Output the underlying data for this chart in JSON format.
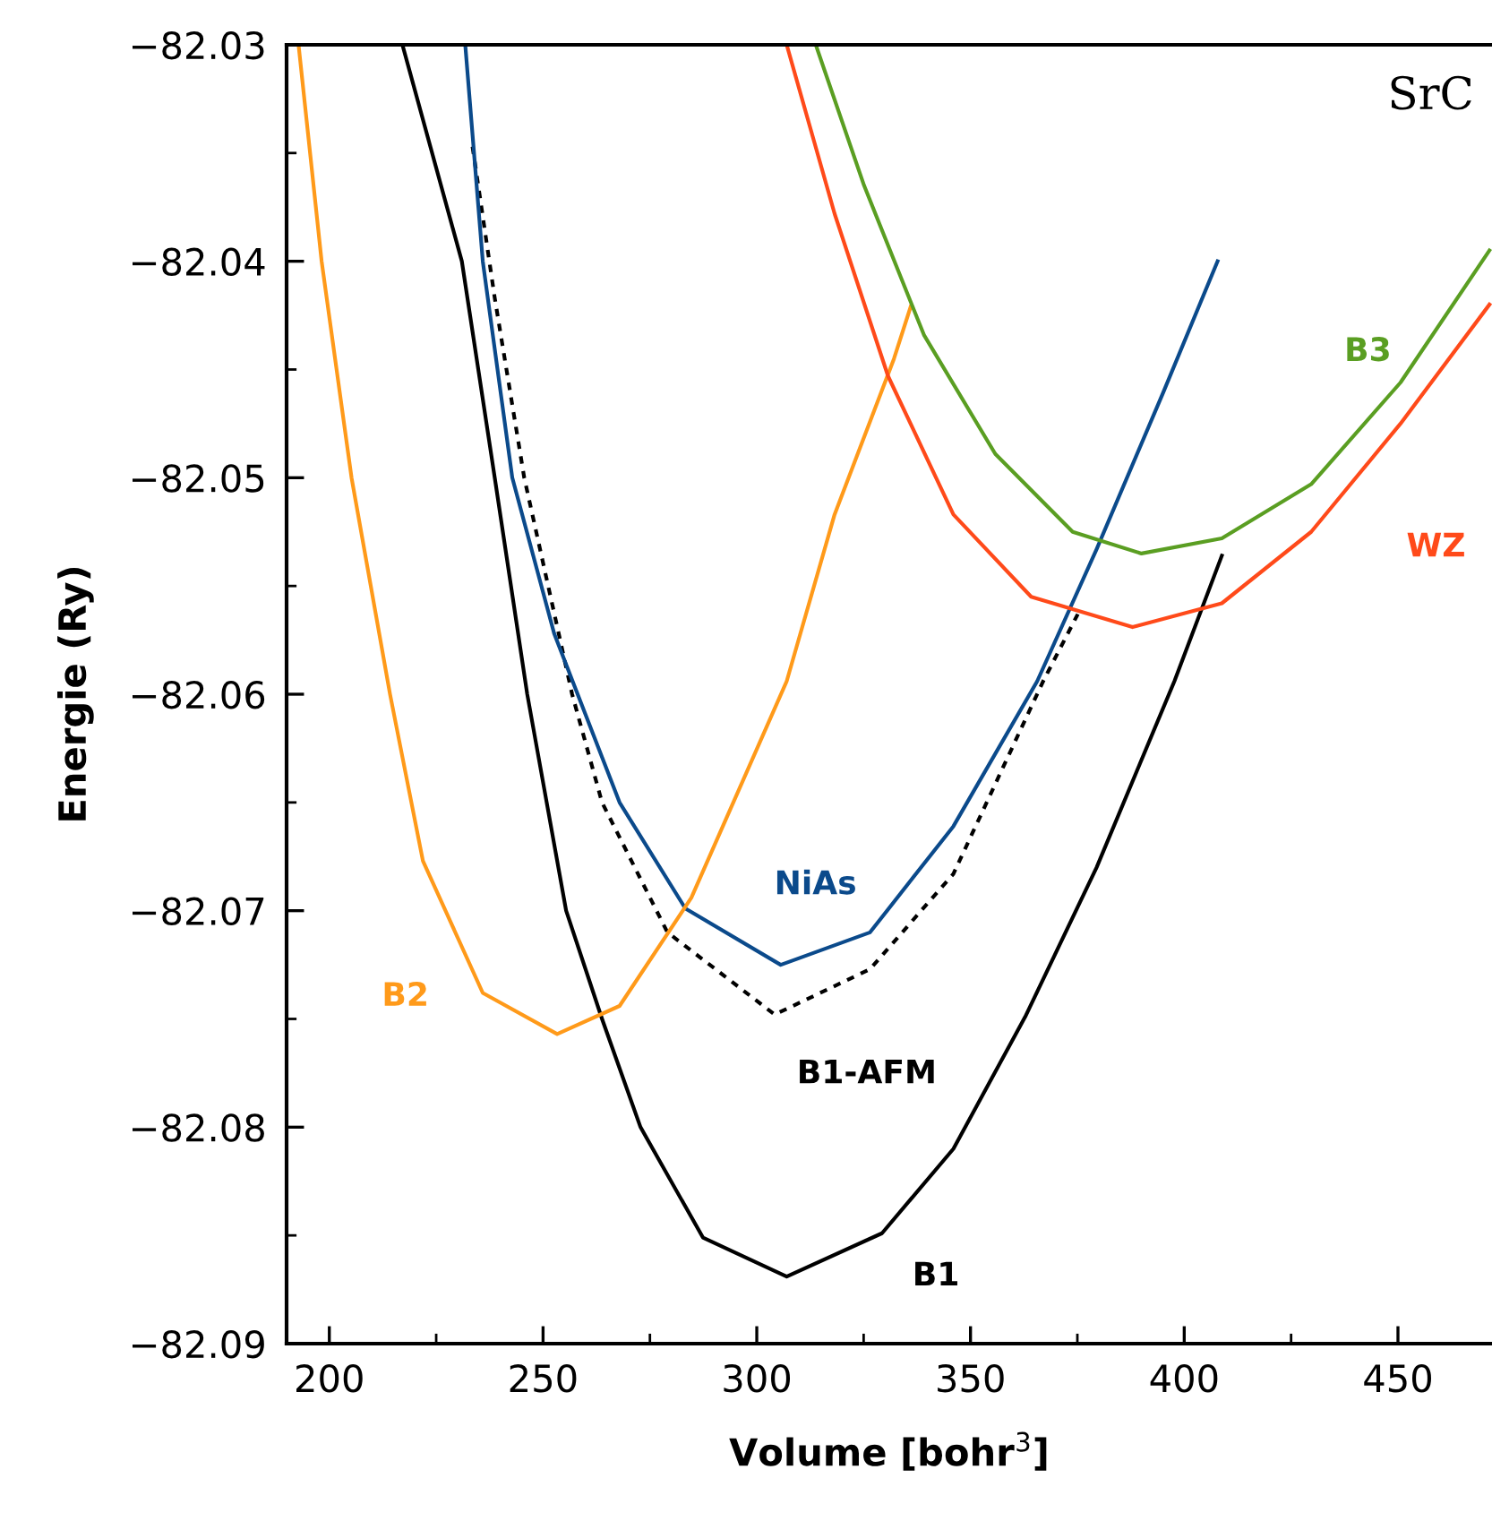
{
  "chart_data": {
    "type": "line",
    "xlabel": "Volume [bohr$^{3}$]",
    "ylabel": "Energie (Ry)",
    "annotations": [
      "SrC"
    ],
    "xlim": [
      190,
      472
    ],
    "ylim": [
      -82.09,
      -82.03
    ],
    "xticks": [
      200,
      250,
      300,
      350,
      400,
      450
    ],
    "yticks": [
      {
        "value": -82.09,
        "label": "−82.09"
      },
      {
        "value": -82.08,
        "label": "−82.08"
      },
      {
        "value": -82.07,
        "label": "−82.07"
      },
      {
        "value": -82.06,
        "label": "−82.06"
      },
      {
        "value": -82.05,
        "label": "−82.05"
      },
      {
        "value": -82.04,
        "label": "−82.04"
      },
      {
        "value": -82.03,
        "label": "−82.03"
      }
    ],
    "grid": false,
    "legend": false,
    "marker": "none",
    "series": [
      {
        "name": "B1",
        "color": "#000000",
        "line_style": "solid",
        "x": [
          217.1,
          231.0,
          238.7,
          246.3,
          255.4,
          263.8,
          272.8,
          287.4,
          307.0,
          329.3,
          346.0,
          362.8,
          379.5,
          397.7,
          408.8
        ],
        "values": [
          -82.03,
          -82.04,
          -82.05,
          -82.06,
          -82.07,
          -82.075,
          -82.08,
          -82.0851,
          -82.0869,
          -82.0849,
          -82.081,
          -82.0749,
          -82.068,
          -82.0594,
          -82.0536
        ]
      },
      {
        "name": "B1-AFM",
        "color": "#000000",
        "line_style": "dotted",
        "x": [
          233.5,
          238.7,
          245.6,
          256.8,
          263.8,
          279.1,
          304.2,
          326.5,
          346.0,
          367.0,
          375.1
        ],
        "values": [
          -82.0347,
          -82.0417,
          -82.05,
          -82.06,
          -82.065,
          -82.071,
          -82.0748,
          -82.0727,
          -82.0683,
          -82.0594,
          -82.0563
        ]
      },
      {
        "name": "NiAs",
        "color": "#0b4a8b",
        "line_style": "solid",
        "x": [
          231.8,
          235.9,
          242.8,
          252.6,
          267.9,
          283.3,
          305.6,
          326.5,
          346.0,
          365.6,
          379.5,
          395.0,
          407.8
        ],
        "values": [
          -82.03,
          -82.04,
          -82.05,
          -82.0572,
          -82.065,
          -82.0699,
          -82.0725,
          -82.071,
          -82.0661,
          -82.0594,
          -82.0533,
          -82.0461,
          -82.04
        ]
      },
      {
        "name": "B2",
        "color": "#ff9a1a",
        "line_style": "solid",
        "x": [
          192.8,
          198.2,
          205.2,
          214.2,
          221.9,
          235.9,
          253.3,
          267.9,
          284.7,
          307.0,
          318.2,
          332.1,
          336.0
        ],
        "values": [
          -82.03,
          -82.04,
          -82.05,
          -82.06,
          -82.0677,
          -82.0738,
          -82.0757,
          -82.0744,
          -82.0694,
          -82.0594,
          -82.0517,
          -82.0445,
          -82.0421
        ]
      },
      {
        "name": "B3",
        "color": "#5a9e22",
        "line_style": "solid",
        "x": [
          313.8,
          325.1,
          339.1,
          355.8,
          373.9,
          390.0,
          408.8,
          429.7,
          450.6,
          471.4
        ],
        "values": [
          -82.03,
          -82.0365,
          -82.0434,
          -82.0489,
          -82.0525,
          -82.0535,
          -82.0528,
          -82.0503,
          -82.0456,
          -82.0395
        ]
      },
      {
        "name": "WZ",
        "color": "#ff4a1a",
        "line_style": "solid",
        "x": [
          307.0,
          318.2,
          330.7,
          346.0,
          364.2,
          387.9,
          408.8,
          429.7,
          450.6,
          471.4
        ],
        "values": [
          -82.03,
          -82.0378,
          -82.0453,
          -82.0517,
          -82.0555,
          -82.0569,
          -82.0558,
          -82.0525,
          -82.0475,
          -82.042
        ]
      }
    ]
  }
}
